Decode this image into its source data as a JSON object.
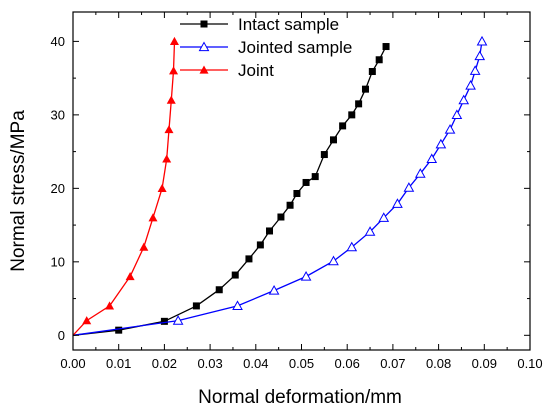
{
  "chart_data": {
    "type": "line",
    "xlabel": "Normal deformation/mm",
    "ylabel": "Normal stress/MPa",
    "xlim": [
      0.0,
      0.1
    ],
    "ylim": [
      -2,
      44
    ],
    "xticks": [
      0.0,
      0.01,
      0.02,
      0.03,
      0.04,
      0.05,
      0.06,
      0.07,
      0.08,
      0.09,
      0.1
    ],
    "xtick_labels": [
      "0.00",
      "0.01",
      "0.02",
      "0.03",
      "0.04",
      "0.05",
      "0.06",
      "0.07",
      "0.08",
      "0.09",
      "0.10"
    ],
    "yticks": [
      0,
      10,
      20,
      30,
      40
    ],
    "ytick_labels": [
      "0",
      "10",
      "20",
      "30",
      "40"
    ],
    "grid": false,
    "legend_position": "top-center",
    "series": [
      {
        "name": "Intact sample",
        "color": "#000000",
        "marker": "filled-square",
        "points": [
          [
            0.0,
            0.0
          ],
          [
            0.01,
            0.7
          ],
          [
            0.02,
            1.9
          ],
          [
            0.027,
            4.0
          ],
          [
            0.032,
            6.2
          ],
          [
            0.0355,
            8.2
          ],
          [
            0.0385,
            10.4
          ],
          [
            0.041,
            12.3
          ],
          [
            0.043,
            14.2
          ],
          [
            0.0455,
            16.1
          ],
          [
            0.0475,
            17.7
          ],
          [
            0.049,
            19.3
          ],
          [
            0.051,
            20.8
          ],
          [
            0.053,
            21.6
          ],
          [
            0.055,
            24.6
          ],
          [
            0.057,
            26.6
          ],
          [
            0.059,
            28.5
          ],
          [
            0.061,
            30.0
          ],
          [
            0.0625,
            31.5
          ],
          [
            0.064,
            33.5
          ],
          [
            0.0655,
            35.9
          ],
          [
            0.067,
            37.5
          ],
          [
            0.0685,
            39.3
          ]
        ]
      },
      {
        "name": "Jointed sample",
        "color": "#0000ff",
        "marker": "open-triangle",
        "points": [
          [
            0.0,
            0.0
          ],
          [
            0.023,
            2.0
          ],
          [
            0.036,
            4.0
          ],
          [
            0.044,
            6.1
          ],
          [
            0.051,
            8.0
          ],
          [
            0.057,
            10.1
          ],
          [
            0.061,
            12.0
          ],
          [
            0.065,
            14.1
          ],
          [
            0.068,
            16.0
          ],
          [
            0.071,
            17.9
          ],
          [
            0.0735,
            20.1
          ],
          [
            0.076,
            22.0
          ],
          [
            0.0785,
            24.0
          ],
          [
            0.0805,
            26.0
          ],
          [
            0.0825,
            28.0
          ],
          [
            0.084,
            30.0
          ],
          [
            0.0855,
            32.0
          ],
          [
            0.087,
            34.0
          ],
          [
            0.088,
            36.0
          ],
          [
            0.089,
            38.0
          ],
          [
            0.0895,
            40.0
          ]
        ]
      },
      {
        "name": "Joint",
        "color": "#ff0000",
        "marker": "filled-triangle",
        "points": [
          [
            0.0,
            0.0
          ],
          [
            0.003,
            2.0
          ],
          [
            0.008,
            4.0
          ],
          [
            0.0125,
            8.0
          ],
          [
            0.0155,
            12.0
          ],
          [
            0.0175,
            16.0
          ],
          [
            0.0195,
            20.0
          ],
          [
            0.0205,
            24.0
          ],
          [
            0.021,
            28.0
          ],
          [
            0.0215,
            32.0
          ],
          [
            0.022,
            36.0
          ],
          [
            0.0222,
            40.0
          ]
        ]
      }
    ]
  }
}
